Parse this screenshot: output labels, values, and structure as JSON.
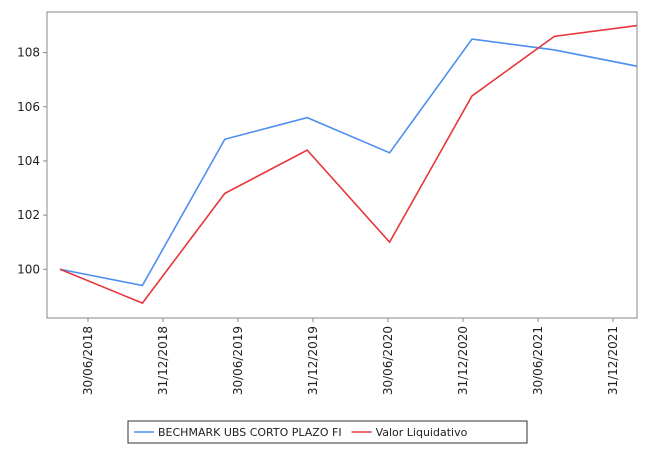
{
  "chart_data": {
    "type": "line",
    "categories": [
      "30/06/2018",
      "31/12/2018",
      "30/06/2019",
      "31/12/2019",
      "30/06/2020",
      "31/12/2020",
      "30/06/2021",
      "31/12/2021"
    ],
    "series": [
      {
        "name": "BECHMARK UBS CORTO PLAZO FI",
        "color": "#4d8ef0",
        "values": [
          100,
          99.4,
          104.8,
          105.6,
          104.3,
          108.5,
          108.1,
          107.5
        ]
      },
      {
        "name": "Valor Liquidativo",
        "color": "#e8353b",
        "values": [
          100,
          98.75,
          102.8,
          104.4,
          101.0,
          106.4,
          108.6,
          109.0
        ]
      }
    ],
    "ylim": [
      98.2,
      109.5
    ],
    "yticks": [
      100,
      102,
      104,
      106,
      108
    ],
    "grid": false,
    "legend": "bottom"
  }
}
